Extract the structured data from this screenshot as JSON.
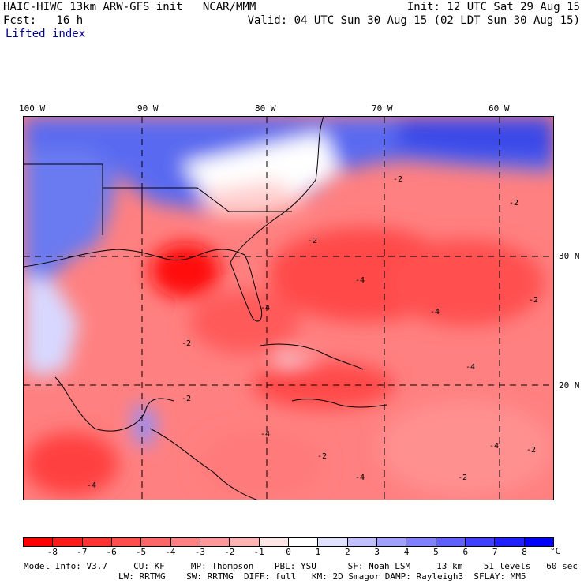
{
  "header": {
    "title": "HAIC-HIWC 13km ARW-GFS init   NCAR/MMM",
    "forecast": "Fcst:   16 h",
    "field": "Lifted index",
    "init": "Init: 12 UTC Sat 29 Aug 15",
    "valid": "Valid: 04 UTC Sun 30 Aug 15 (02 LDT Sun 30 Aug 15)"
  },
  "map": {
    "lon_labels": [
      "100 W",
      "90 W",
      "80 W",
      "70 W",
      "60 W"
    ],
    "lat_labels": [
      "30 N",
      "20 N"
    ],
    "contour_labels": [
      "-2",
      "-2",
      "-2",
      "-4",
      "-4",
      "-2",
      "-4",
      "-2",
      "-4",
      "-4",
      "-2",
      "-4",
      "-2",
      "-4",
      "-2",
      "-4",
      "-2"
    ]
  },
  "colorbar": {
    "ticks": [
      "-8",
      "-7",
      "-6",
      "-5",
      "-4",
      "-3",
      "-2",
      "-1",
      "0",
      "1",
      "2",
      "3",
      "4",
      "5",
      "6",
      "7",
      "8"
    ],
    "unit": "°C",
    "colors": [
      "#ff0000",
      "#ff1a1a",
      "#ff3333",
      "#ff4d4d",
      "#ff6666",
      "#ff8080",
      "#ff9999",
      "#ffb3b3",
      "#ffe6e6",
      "#ffffff",
      "#e0e0ff",
      "#c0c0ff",
      "#a0a0ff",
      "#8080ff",
      "#6060ff",
      "#4040ff",
      "#2020ff",
      "#0000ff"
    ]
  },
  "footer": {
    "line1": "Model Info: V3.7     CU: KF     MP: Thompson    PBL: YSU      SF: Noah LSM     13 km    51 levels   60 sec",
    "line2": "LW: RRTMG    SW: RRTMG  DIFF: full   KM: 2D Smagor DAMP: Rayleigh3  SFLAY: MM5"
  }
}
